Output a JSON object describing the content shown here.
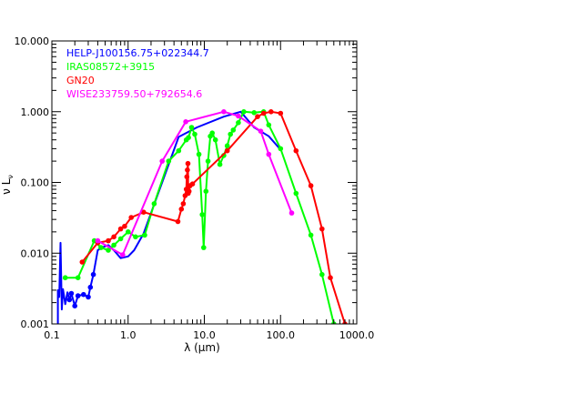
{
  "chart_data": {
    "type": "line",
    "title": "",
    "xlabel": "λ (μm)",
    "ylabel": "ν L_ν",
    "x_scale": "log",
    "y_scale": "log",
    "xlim": [
      0.1,
      1000.0
    ],
    "ylim": [
      0.001,
      10.0
    ],
    "x_ticks": [
      0.1,
      1.0,
      10.0,
      100.0,
      1000.0
    ],
    "x_tick_labels": [
      "0.1",
      "1.0",
      "10.0",
      "100.0",
      "1000.0"
    ],
    "y_ticks": [
      0.001,
      0.01,
      0.1,
      1.0,
      10.0
    ],
    "y_tick_labels": [
      "0.001",
      "0.010",
      "0.100",
      "1.000",
      "10.000"
    ],
    "grid": false,
    "legend_position": "top-left",
    "series": [
      {
        "name": "HELP-J100156.75+022344.7",
        "color": "#0000ff",
        "marker_indices": [
          8,
          9,
          10,
          11,
          12,
          13,
          14,
          15
        ],
        "points": [
          [
            0.12,
            0.001
          ],
          [
            0.12,
            0.003
          ],
          [
            0.125,
            0.0024
          ],
          [
            0.13,
            0.014
          ],
          [
            0.135,
            0.0016
          ],
          [
            0.14,
            0.0031
          ],
          [
            0.15,
            0.0019
          ],
          [
            0.16,
            0.0028
          ],
          [
            0.17,
            0.0022
          ],
          [
            0.18,
            0.0027
          ],
          [
            0.2,
            0.0018
          ],
          [
            0.22,
            0.0025
          ],
          [
            0.26,
            0.0026
          ],
          [
            0.3,
            0.0024
          ],
          [
            0.32,
            0.0033
          ],
          [
            0.35,
            0.005
          ],
          [
            0.4,
            0.011
          ],
          [
            0.45,
            0.012
          ],
          [
            0.55,
            0.013
          ],
          [
            0.65,
            0.011
          ],
          [
            0.8,
            0.0085
          ],
          [
            1.0,
            0.009
          ],
          [
            1.2,
            0.011
          ],
          [
            1.6,
            0.019
          ],
          [
            4.6,
            0.44
          ],
          [
            8.0,
            0.6
          ],
          [
            18.0,
            0.85
          ],
          [
            30.0,
            1.0
          ],
          [
            45.0,
            0.6
          ],
          [
            70.0,
            0.45
          ],
          [
            100.0,
            0.29
          ]
        ]
      },
      {
        "name": "IRAS08572+3915",
        "color": "#00ff00",
        "points": [
          [
            0.15,
            0.0045
          ],
          [
            0.22,
            0.0045
          ],
          [
            0.36,
            0.015
          ],
          [
            0.44,
            0.012
          ],
          [
            0.55,
            0.011
          ],
          [
            0.65,
            0.013
          ],
          [
            0.8,
            0.016
          ],
          [
            1.0,
            0.02
          ],
          [
            1.25,
            0.017
          ],
          [
            1.65,
            0.018
          ],
          [
            2.2,
            0.05
          ],
          [
            3.4,
            0.2
          ],
          [
            4.6,
            0.28
          ],
          [
            5.8,
            0.4
          ],
          [
            6.2,
            0.43
          ],
          [
            6.8,
            0.6
          ],
          [
            7.5,
            0.48
          ],
          [
            8.5,
            0.25
          ],
          [
            9.4,
            0.035
          ],
          [
            9.8,
            0.012
          ],
          [
            10.5,
            0.075
          ],
          [
            11.2,
            0.2
          ],
          [
            12.0,
            0.45
          ],
          [
            12.7,
            0.5
          ],
          [
            14.0,
            0.4
          ],
          [
            16.0,
            0.18
          ],
          [
            18.0,
            0.24
          ],
          [
            20.0,
            0.33
          ],
          [
            22.0,
            0.48
          ],
          [
            24.0,
            0.55
          ],
          [
            28.0,
            0.7
          ],
          [
            33.0,
            1.0
          ],
          [
            45.0,
            0.97
          ],
          [
            60.0,
            1.0
          ],
          [
            70.0,
            0.65
          ],
          [
            100.0,
            0.3
          ],
          [
            160.0,
            0.07
          ],
          [
            250.0,
            0.018
          ],
          [
            350.0,
            0.005
          ],
          [
            500.0,
            0.001
          ]
        ]
      },
      {
        "name": "GN20",
        "color": "#ff0000",
        "points": [
          [
            0.25,
            0.0075
          ],
          [
            0.4,
            0.014
          ],
          [
            0.55,
            0.015
          ],
          [
            0.65,
            0.017
          ],
          [
            0.8,
            0.022
          ],
          [
            0.9,
            0.024
          ],
          [
            1.1,
            0.032
          ],
          [
            1.6,
            0.038
          ],
          [
            4.5,
            0.028
          ],
          [
            5.0,
            0.042
          ],
          [
            5.3,
            0.05
          ],
          [
            5.6,
            0.065
          ],
          [
            5.8,
            0.08
          ],
          [
            5.9,
            0.12
          ],
          [
            6.0,
            0.15
          ],
          [
            6.1,
            0.185
          ],
          [
            6.15,
            0.07
          ],
          [
            6.3,
            0.075
          ],
          [
            6.5,
            0.09
          ],
          [
            7.0,
            0.095
          ],
          [
            20.0,
            0.28
          ],
          [
            50.0,
            0.85
          ],
          [
            60.0,
            0.95
          ],
          [
            75.0,
            1.0
          ],
          [
            100.0,
            0.95
          ],
          [
            160.0,
            0.28
          ],
          [
            250.0,
            0.09
          ],
          [
            350.0,
            0.022
          ],
          [
            450.0,
            0.0045
          ],
          [
            700.0,
            0.001
          ]
        ]
      },
      {
        "name": "WISE233759.50+792654.6",
        "color": "#ff00ff",
        "points": [
          [
            0.4,
            0.015
          ],
          [
            0.85,
            0.0095
          ],
          [
            2.8,
            0.2
          ],
          [
            5.7,
            0.72
          ],
          [
            18.0,
            1.0
          ],
          [
            28.0,
            0.87
          ],
          [
            55.0,
            0.53
          ],
          [
            70.0,
            0.25
          ],
          [
            140.0,
            0.037
          ]
        ]
      }
    ]
  }
}
